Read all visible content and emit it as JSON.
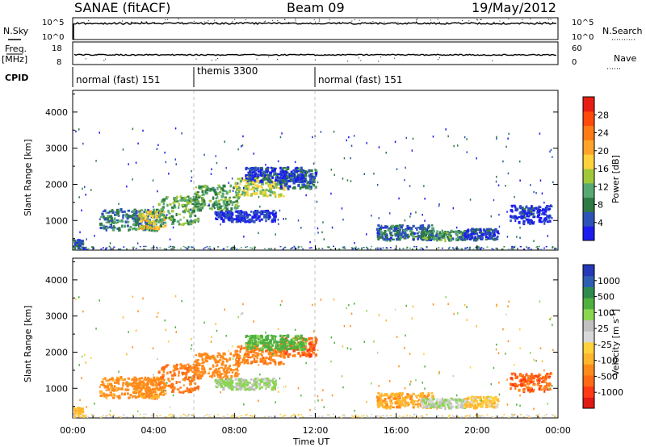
{
  "header": {
    "station": "SANAE (fitACF)",
    "beam": "Beam 09",
    "date": "19/May/2012"
  },
  "side_labels": {
    "nsky": "N.Sky",
    "freq_line1": "Freq.",
    "freq_line2": "[MHz]",
    "cpid": "CPID",
    "nsearch": "N.Search",
    "nave": "Nave"
  },
  "noise_panel": {
    "left_ticks": [
      "10^5",
      "10^0"
    ],
    "right_ticks": [
      "10^5",
      "10^0"
    ]
  },
  "freq_panel": {
    "left_ticks": [
      "18",
      "8"
    ],
    "right_ticks": [
      "60",
      "0"
    ]
  },
  "cpid_segments": [
    {
      "label": "normal (fast) 151",
      "start_hour": 0
    },
    {
      "label": "themis 3300",
      "start_hour": 6
    },
    {
      "label": "normal (fast) 151",
      "start_hour": 12
    }
  ],
  "time_axis": {
    "label": "Time UT",
    "ticks": [
      "00:00",
      "04:00",
      "08:00",
      "12:00",
      "16:00",
      "20:00",
      "00:00"
    ]
  },
  "range_axis": {
    "label": "Slant Range [km]",
    "ticks": [
      "1000",
      "2000",
      "3000",
      "4000"
    ]
  },
  "power_scale": {
    "label": "Power [dB]",
    "ticks": [
      "4",
      "8",
      "12",
      "16",
      "20",
      "24",
      "28"
    ],
    "colors": [
      "#1c1cf0",
      "#2d52b8",
      "#2f7a44",
      "#58a872",
      "#a0c83a",
      "#ffd23c",
      "#ffa32a",
      "#ff7a14",
      "#ff4a0c",
      "#e81e14"
    ]
  },
  "velocity_scale": {
    "label": "Velocity [m s",
    "label_sup": "-1",
    "label_end": "]",
    "ticks": [
      "1000",
      "500",
      "100",
      "25",
      "-25",
      "-100",
      "-500",
      "-1000"
    ],
    "colors": [
      "#2438b8",
      "#2e5eb0",
      "#2e8a4e",
      "#4fb040",
      "#8ad650",
      "#c0c0c0",
      "#d8d8d8",
      "#ffd23c",
      "#ffb62e",
      "#ff8a1c",
      "#ff6a14",
      "#ff3a14",
      "#e01a14"
    ]
  },
  "chart_data": {
    "type": "heatmap",
    "x_range_hours": [
      0,
      24
    ],
    "y_range_km": [
      180,
      4600
    ],
    "panels": [
      "Power [dB]",
      "Velocity [m s-1]"
    ],
    "scatter_bands": [
      {
        "t0": 1.3,
        "t1": 4.2,
        "r0": 750,
        "r1": 1350,
        "power": 9,
        "velocity": -150
      },
      {
        "t0": 3.2,
        "t1": 4.5,
        "r0": 800,
        "r1": 1300,
        "power": 19,
        "velocity": -120
      },
      {
        "t0": 4.2,
        "t1": 6.2,
        "r0": 900,
        "r1": 1700,
        "power": 13,
        "velocity": -300
      },
      {
        "t0": 6.0,
        "t1": 8.2,
        "r0": 1300,
        "r1": 2000,
        "power": 12,
        "velocity": -200
      },
      {
        "t0": 8.0,
        "t1": 10.5,
        "r0": 1700,
        "r1": 2250,
        "power": 16,
        "velocity": -250
      },
      {
        "t0": 10.2,
        "t1": 12.0,
        "r0": 1900,
        "r1": 2450,
        "power": 8,
        "velocity": -400
      },
      {
        "t0": 8.5,
        "t1": 11.5,
        "r0": 2100,
        "r1": 2500,
        "power": 6,
        "velocity": 150
      },
      {
        "t0": 7.0,
        "t1": 10.0,
        "r0": 1000,
        "r1": 1300,
        "power": 4,
        "velocity": 60
      },
      {
        "t0": 15.0,
        "t1": 17.8,
        "r0": 500,
        "r1": 900,
        "power": 8,
        "velocity": -80
      },
      {
        "t0": 17.2,
        "t1": 19.5,
        "r0": 480,
        "r1": 750,
        "power": 11,
        "velocity": 40
      },
      {
        "t0": 19.3,
        "t1": 21.0,
        "r0": 500,
        "r1": 800,
        "power": 6,
        "velocity": -20
      },
      {
        "t0": 21.6,
        "t1": 23.6,
        "r0": 950,
        "r1": 1450,
        "power": 5,
        "velocity": -400
      },
      {
        "t0": 0.0,
        "t1": 0.5,
        "r0": 250,
        "r1": 500,
        "power": 6,
        "velocity": -60
      }
    ]
  }
}
